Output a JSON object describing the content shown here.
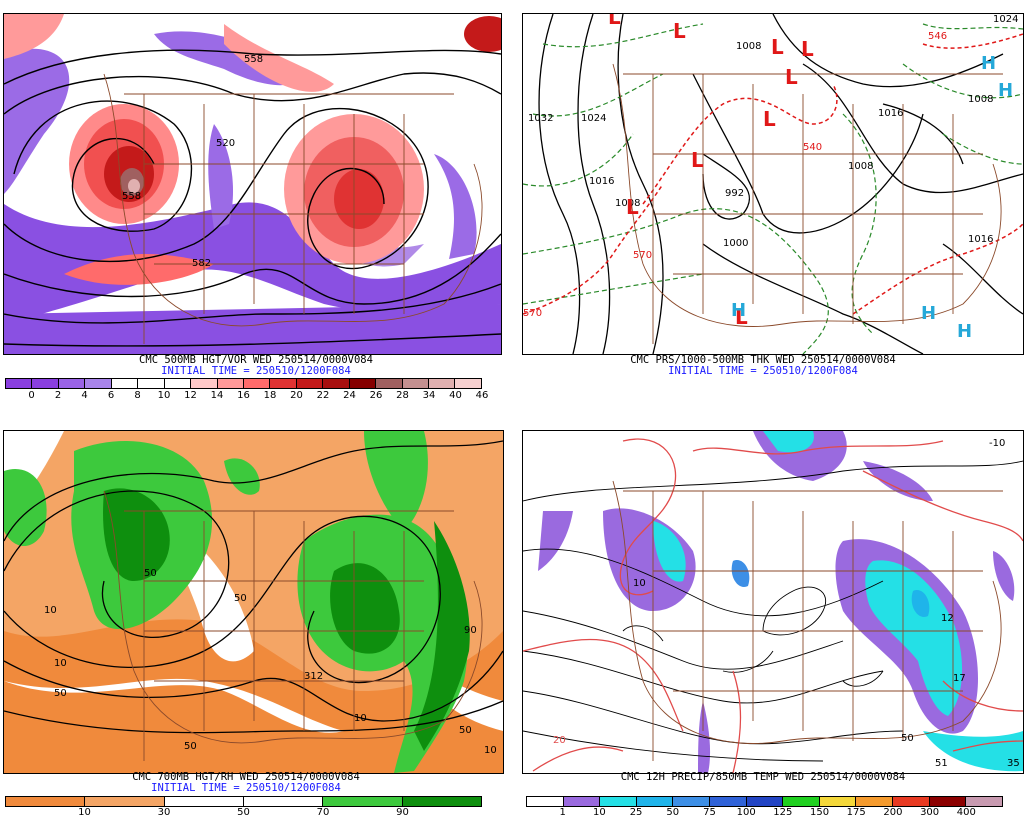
{
  "panels": [
    {
      "caption": "CMC 500MB HGT/VOR WED 250514/0000V084",
      "initial": "INITIAL TIME = 250510/1200F084",
      "colorbar": {
        "colors": [
          "#8a3fe0",
          "#8a3fe0",
          "#9a63e6",
          "#a884ea",
          "#ffffff",
          "#ffffff",
          "#ffffff",
          "#ffc9c9",
          "#ff9999",
          "#ff6b6b",
          "#e03333",
          "#c41a1a",
          "#a80f0f",
          "#860000",
          "#a06060",
          "#c49090",
          "#e0b0b0",
          "#f6d0d0"
        ],
        "labels": [
          "0",
          "2",
          "4",
          "6",
          "8",
          "10",
          "12",
          "14",
          "16",
          "18",
          "20",
          "22",
          "24",
          "26",
          "28",
          "34",
          "40",
          "46"
        ]
      },
      "map_labels": [
        "558",
        "520",
        "582",
        "558"
      ]
    },
    {
      "caption": "CMC PRS/1000-500MB THK WED 250514/0000V084",
      "initial": "INITIAL TIME = 250510/1200F084",
      "map_labels": [
        "1032",
        "1024",
        "1016",
        "1008",
        "1008",
        "992",
        "1000",
        "1016",
        "1008",
        "1016",
        "1008",
        "570",
        "540",
        "570",
        "546",
        "1024"
      ],
      "lows": [
        "L",
        "L",
        "L",
        "L",
        "L",
        "L",
        "L",
        "L",
        "L"
      ],
      "highs": [
        "H",
        "H",
        "H",
        "H",
        "H"
      ]
    },
    {
      "caption": "CMC 700MB HGT/RH WED 250514/0000V084",
      "initial": "INITIAL TIME = 250510/1200F084",
      "colorbar": {
        "colors": [
          "#f08a3c",
          "#f4a565",
          "#ffffff",
          "#ffffff",
          "#3dc93d",
          "#0e8f0e"
        ],
        "labels": [
          "10",
          "30",
          "50",
          "70",
          "90"
        ]
      },
      "map_labels": [
        "10",
        "50",
        "10",
        "50",
        "312",
        "90",
        "50",
        "10",
        "50",
        "10",
        "50"
      ]
    },
    {
      "caption": "CMC 12H PRECIP/850MB TEMP WED 250514/0000V084",
      "initial": "",
      "colorbar": {
        "colors": [
          "#ffffff",
          "#9a6adf",
          "#24e0e6",
          "#1fb4ea",
          "#3d8fe6",
          "#2f62d8",
          "#2244c4",
          "#1fd01f",
          "#f4d83a",
          "#f59b2e",
          "#e83a22",
          "#8c0000",
          "#c89ab0"
        ],
        "labels": [
          "1",
          "10",
          "25",
          "50",
          "75",
          "100",
          "125",
          "150",
          "175",
          "200",
          "300",
          "400"
        ]
      },
      "map_labels": [
        "20",
        "51",
        "35",
        "50",
        "10",
        "17",
        "12",
        "-10"
      ]
    }
  ]
}
